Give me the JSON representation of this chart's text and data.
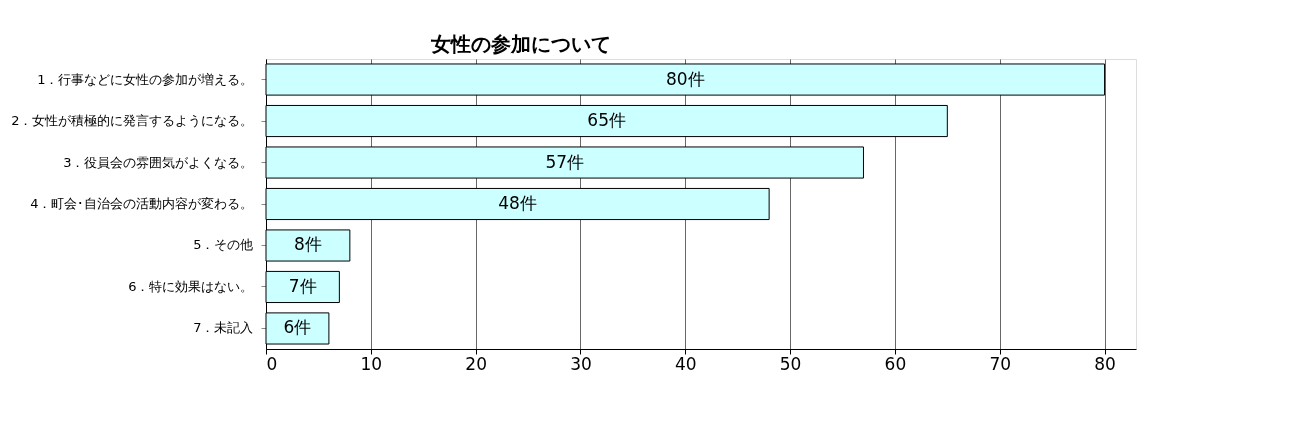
{
  "chart_data": {
    "type": "bar",
    "orientation": "horizontal",
    "title": "女性の参加について",
    "categories": [
      "1．行事などに女性の参加が増える。",
      "2．女性が積極的に発言するようになる。",
      "3．役員会の雰囲気がよくなる。",
      "4．町会･自治会の活動内容が変わる。",
      "5．その他　",
      "6．特に効果はない。",
      "7．未記入"
    ],
    "values": [
      80,
      65,
      57,
      48,
      8,
      7,
      6
    ],
    "value_labels": [
      "80件",
      "65件",
      "57件",
      "48件",
      "8件",
      "7件",
      "6件"
    ],
    "color": "#ccffff",
    "xlim": [
      0,
      83
    ],
    "xticks": [
      0,
      10,
      20,
      30,
      40,
      50,
      60,
      70,
      80
    ],
    "grid": "x"
  }
}
